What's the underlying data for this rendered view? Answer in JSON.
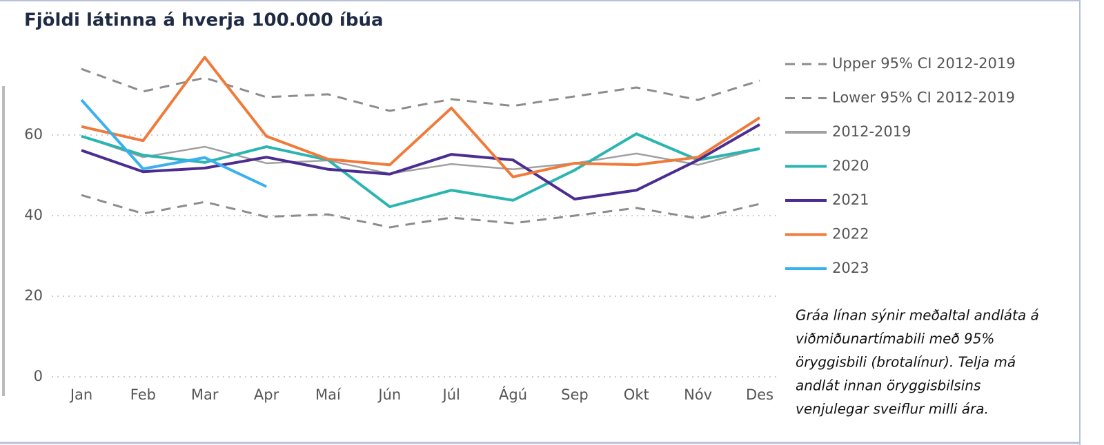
{
  "chart_data": {
    "type": "line",
    "title": "Fjöldi látinna á hverja 100.000 íbúa",
    "categories": [
      "Jan",
      "Feb",
      "Mar",
      "Apr",
      "Maí",
      "Jún",
      "Júl",
      "Ágú",
      "Sep",
      "Okt",
      "Nóv",
      "Des"
    ],
    "ylim": [
      0,
      80
    ],
    "yticks": [
      0,
      20,
      40,
      60
    ],
    "grid": true,
    "legend": "right",
    "series": [
      {
        "name": "Upper 95% CI 2012-2019",
        "color": "#8c8c8c",
        "dashed": true,
        "values": [
          76.4,
          70.8,
          74.2,
          69.4,
          70.1,
          66.0,
          68.9,
          67.2,
          69.6,
          71.8,
          68.7,
          73.5
        ]
      },
      {
        "name": "Lower 95% CI 2012-2019",
        "color": "#8c8c8c",
        "dashed": true,
        "values": [
          45.1,
          40.5,
          43.4,
          39.7,
          40.3,
          37.1,
          39.5,
          38.1,
          40.0,
          41.9,
          39.3,
          42.9
        ]
      },
      {
        "name": "2012-2019",
        "color": "#a0a0a0",
        "values": [
          59.7,
          54.5,
          57.1,
          53.0,
          53.7,
          50.4,
          52.8,
          51.5,
          53.0,
          55.4,
          52.6,
          56.6
        ]
      },
      {
        "name": "2020",
        "color": "#2bb5b0",
        "values": [
          59.7,
          55.0,
          53.2,
          57.1,
          53.8,
          42.2,
          46.3,
          43.8,
          51.3,
          60.3,
          53.8,
          56.6
        ]
      },
      {
        "name": "2021",
        "color": "#4b2c91",
        "values": [
          56.2,
          50.9,
          51.8,
          54.5,
          51.5,
          50.3,
          55.2,
          53.8,
          44.1,
          46.3,
          53.8,
          62.6
        ]
      },
      {
        "name": "2022",
        "color": "#f07a3a",
        "values": [
          62.1,
          58.6,
          79.3,
          59.7,
          54.0,
          52.6,
          66.7,
          49.6,
          53.0,
          52.6,
          54.5,
          64.3
        ]
      },
      {
        "name": "2023",
        "color": "#39b0f0",
        "values": [
          68.7,
          51.6,
          54.4,
          47.2,
          null,
          null,
          null,
          null,
          null,
          null,
          null,
          null
        ]
      }
    ],
    "annotation": [
      "Gráa línan sýnir meðaltal andláta á",
      "viðmiðunartímabili með 95%",
      "öryggisbili (brotalínur). Telja má",
      "andlát innan öryggisbilsins",
      "venjulegar sveiflur milli ára."
    ]
  }
}
